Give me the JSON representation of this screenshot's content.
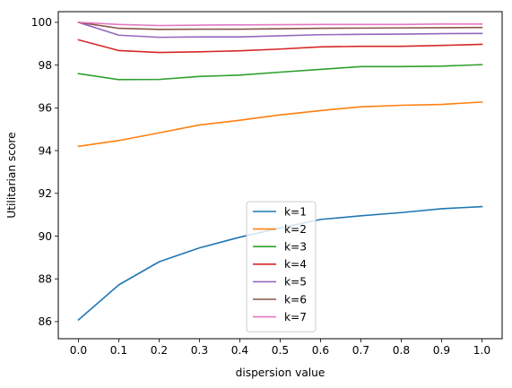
{
  "chart_data": {
    "type": "line",
    "title": "",
    "xlabel": "dispersion value",
    "ylabel": "Utilitarian score",
    "x": [
      0.0,
      0.1,
      0.2,
      0.3,
      0.4,
      0.5,
      0.6,
      0.7,
      0.8,
      0.9,
      1.0
    ],
    "xlim": [
      -0.05,
      1.05
    ],
    "ylim": [
      85.2,
      100.5
    ],
    "xticks": [
      "0.0",
      "0.1",
      "0.2",
      "0.3",
      "0.4",
      "0.5",
      "0.6",
      "0.7",
      "0.8",
      "0.9",
      "1.0"
    ],
    "yticks": [
      "86",
      "88",
      "90",
      "92",
      "94",
      "96",
      "98",
      "100"
    ],
    "grid": false,
    "legend_position": "lower center",
    "series": [
      {
        "name": "k=1",
        "color": "#1f77b4",
        "values": [
          86.08,
          87.72,
          88.8,
          89.45,
          89.95,
          90.38,
          90.78,
          90.95,
          91.1,
          91.28,
          91.38
        ]
      },
      {
        "name": "k=2",
        "color": "#ff7f0e",
        "values": [
          94.2,
          94.47,
          94.83,
          95.2,
          95.42,
          95.67,
          95.87,
          96.05,
          96.12,
          96.16,
          96.27
        ]
      },
      {
        "name": "k=3",
        "color": "#2ca02c",
        "values": [
          97.6,
          97.32,
          97.33,
          97.47,
          97.53,
          97.67,
          97.8,
          97.93,
          97.93,
          97.95,
          98.02
        ]
      },
      {
        "name": "k=4",
        "color": "#d62728",
        "values": [
          99.18,
          98.68,
          98.59,
          98.62,
          98.67,
          98.75,
          98.85,
          98.88,
          98.88,
          98.92,
          98.97
        ]
      },
      {
        "name": "k=5",
        "color": "#9467bd",
        "values": [
          100.0,
          99.4,
          99.3,
          99.32,
          99.32,
          99.37,
          99.42,
          99.44,
          99.45,
          99.47,
          99.48
        ]
      },
      {
        "name": "k=6",
        "color": "#8c564b",
        "values": [
          100.0,
          99.72,
          99.67,
          99.68,
          99.68,
          99.7,
          99.72,
          99.73,
          99.74,
          99.75,
          99.76
        ]
      },
      {
        "name": "k=7",
        "color": "#e377c2",
        "values": [
          100.0,
          99.9,
          99.85,
          99.87,
          99.88,
          99.89,
          99.9,
          99.9,
          99.9,
          99.92,
          99.92
        ]
      }
    ]
  }
}
